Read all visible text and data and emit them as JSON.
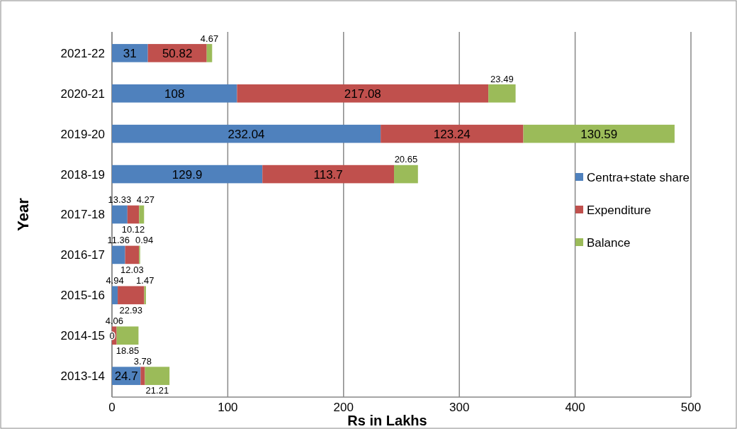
{
  "chart_data": {
    "type": "bar",
    "orientation": "horizontal",
    "stacked": true,
    "xlabel": "Rs in Lakhs",
    "ylabel": "Year",
    "categories": [
      "2021-22",
      "2020-21",
      "2019-20",
      "2018-19",
      "2017-18",
      "2016-17",
      "2015-16",
      "2014-15",
      "2013-14"
    ],
    "series": [
      {
        "name": "Centra+state share",
        "color": "#4f81bd",
        "values": [
          31,
          108,
          232.04,
          129.9,
          13.33,
          11.36,
          4.94,
          0,
          24.7
        ]
      },
      {
        "name": "Expenditure",
        "color": "#c0504d",
        "values": [
          50.82,
          217.08,
          123.24,
          113.7,
          10.12,
          12.03,
          22.93,
          4.06,
          3.78
        ]
      },
      {
        "name": "Balance",
        "color": "#9bbb59",
        "values": [
          4.67,
          23.49,
          130.59,
          20.65,
          4.27,
          0.94,
          1.47,
          18.85,
          21.21
        ]
      }
    ],
    "xlim": [
      0,
      500
    ],
    "xticks": [
      0,
      100,
      200,
      300,
      400,
      500
    ],
    "grid": "x",
    "legend": "right",
    "data_labels": true
  }
}
